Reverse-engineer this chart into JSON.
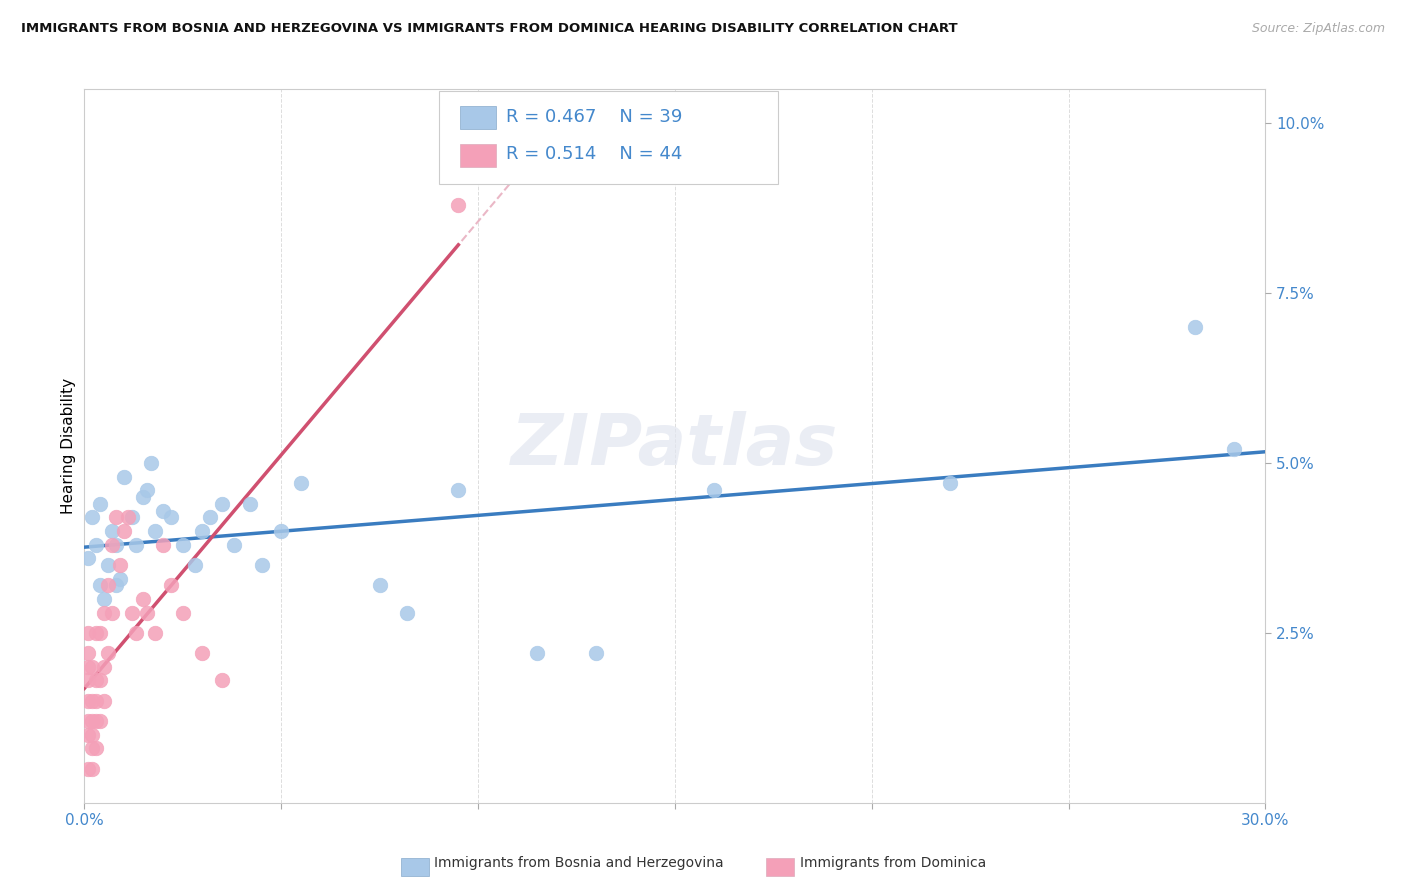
{
  "title": "IMMIGRANTS FROM BOSNIA AND HERZEGOVINA VS IMMIGRANTS FROM DOMINICA HEARING DISABILITY CORRELATION CHART",
  "source": "Source: ZipAtlas.com",
  "ylabel": "Hearing Disability",
  "xlim": [
    0.0,
    0.3
  ],
  "ylim": [
    0.0,
    0.105
  ],
  "series1_color": "#a8c8e8",
  "series2_color": "#f4a0b8",
  "line1_color": "#3a7cc0",
  "line2_color": "#d05070",
  "diag_color": "#e8b0c0",
  "watermark": "ZIPatlas",
  "legend_r1": "0.467",
  "legend_n1": "39",
  "legend_r2": "0.514",
  "legend_n2": "44",
  "legend_label1": "Immigrants from Bosnia and Herzegovina",
  "legend_label2": "Immigrants from Dominica",
  "bosnia_x": [
    0.001,
    0.002,
    0.003,
    0.004,
    0.004,
    0.005,
    0.006,
    0.007,
    0.008,
    0.008,
    0.009,
    0.01,
    0.012,
    0.013,
    0.015,
    0.016,
    0.017,
    0.018,
    0.02,
    0.022,
    0.025,
    0.028,
    0.03,
    0.032,
    0.035,
    0.038,
    0.042,
    0.045,
    0.05,
    0.055,
    0.075,
    0.082,
    0.095,
    0.115,
    0.13,
    0.16,
    0.22,
    0.282,
    0.292
  ],
  "bosnia_y": [
    0.036,
    0.042,
    0.038,
    0.044,
    0.032,
    0.03,
    0.035,
    0.04,
    0.032,
    0.038,
    0.033,
    0.048,
    0.042,
    0.038,
    0.045,
    0.046,
    0.05,
    0.04,
    0.043,
    0.042,
    0.038,
    0.035,
    0.04,
    0.042,
    0.044,
    0.038,
    0.044,
    0.035,
    0.04,
    0.047,
    0.032,
    0.028,
    0.046,
    0.022,
    0.022,
    0.046,
    0.047,
    0.07,
    0.052
  ],
  "dominica_x": [
    0.001,
    0.001,
    0.001,
    0.001,
    0.001,
    0.001,
    0.001,
    0.001,
    0.002,
    0.002,
    0.002,
    0.002,
    0.002,
    0.002,
    0.003,
    0.003,
    0.003,
    0.003,
    0.003,
    0.004,
    0.004,
    0.004,
    0.005,
    0.005,
    0.005,
    0.006,
    0.006,
    0.007,
    0.007,
    0.008,
    0.009,
    0.01,
    0.011,
    0.012,
    0.013,
    0.015,
    0.016,
    0.018,
    0.02,
    0.022,
    0.025,
    0.03,
    0.035,
    0.095
  ],
  "dominica_y": [
    0.005,
    0.01,
    0.012,
    0.015,
    0.018,
    0.02,
    0.022,
    0.025,
    0.005,
    0.008,
    0.01,
    0.012,
    0.015,
    0.02,
    0.008,
    0.012,
    0.015,
    0.018,
    0.025,
    0.012,
    0.018,
    0.025,
    0.015,
    0.02,
    0.028,
    0.022,
    0.032,
    0.028,
    0.038,
    0.042,
    0.035,
    0.04,
    0.042,
    0.028,
    0.025,
    0.03,
    0.028,
    0.025,
    0.038,
    0.032,
    0.028,
    0.022,
    0.018,
    0.088
  ]
}
